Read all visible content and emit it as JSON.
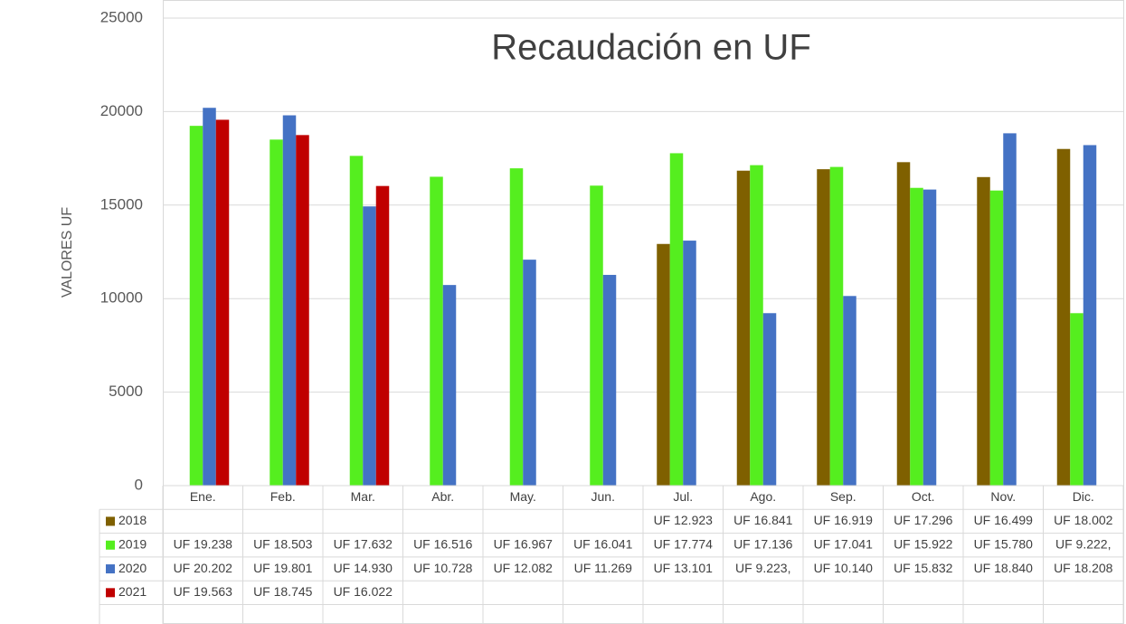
{
  "chart_data": {
    "type": "bar",
    "title": "Recaudación en UF",
    "y_label": "VALORES UF",
    "categories": [
      "Ene.",
      "Feb.",
      "Mar.",
      "Abr.",
      "May.",
      "Jun.",
      "Jul.",
      "Ago.",
      "Sep.",
      "Oct.",
      "Nov.",
      "Dic."
    ],
    "series": [
      {
        "name": "2018",
        "color": "#7f6000",
        "values": [
          null,
          null,
          null,
          null,
          null,
          null,
          12923,
          16841,
          16919,
          17296,
          16499,
          18002
        ],
        "value_labels": [
          null,
          null,
          null,
          null,
          null,
          null,
          "UF 12.923",
          "UF 16.841",
          "UF 16.919",
          "UF 17.296",
          "UF 16.499",
          "UF 18.002"
        ]
      },
      {
        "name": "2019",
        "color": "#55ee1f",
        "values": [
          19238,
          18503,
          17632,
          16516,
          16967,
          16041,
          17774,
          17136,
          17041,
          15922,
          15780,
          9222
        ],
        "value_labels": [
          "UF 19.238",
          "UF 18.503",
          "UF 17.632",
          "UF 16.516",
          "UF 16.967",
          "UF 16.041",
          "UF 17.774",
          "UF 17.136",
          "UF 17.041",
          "UF 15.922",
          "UF 15.780",
          "UF 9.222,"
        ]
      },
      {
        "name": "2020",
        "color": "#4472c4",
        "values": [
          20202,
          19801,
          14930,
          10728,
          12082,
          11269,
          13101,
          9223,
          10140,
          15832,
          18840,
          18208
        ],
        "value_labels": [
          "UF 20.202",
          "UF 19.801",
          "UF 14.930",
          "UF 10.728",
          "UF 12.082",
          "UF 11.269",
          "UF 13.101",
          "UF 9.223,",
          "UF 10.140",
          "UF 15.832",
          "UF 18.840",
          "UF 18.208"
        ]
      },
      {
        "name": "2021",
        "color": "#c00000",
        "values": [
          19563,
          18745,
          16022,
          null,
          null,
          null,
          null,
          null,
          null,
          null,
          null,
          null
        ],
        "value_labels": [
          "UF 19.563",
          "UF 18.745",
          "UF 16.022",
          null,
          null,
          null,
          null,
          null,
          null,
          null,
          null,
          null
        ]
      }
    ],
    "ylim": [
      0,
      25000
    ],
    "yticks": [
      0,
      5000,
      10000,
      15000,
      20000,
      25000
    ],
    "grid": true
  }
}
